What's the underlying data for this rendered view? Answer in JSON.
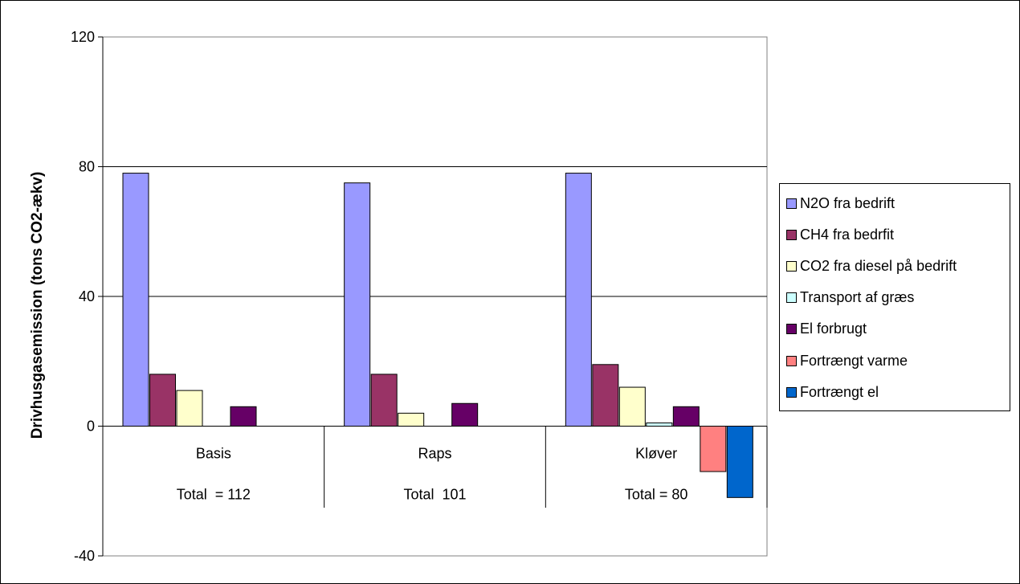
{
  "chart_data": {
    "type": "bar",
    "ylabel": "Drivhusgasemission (tons CO2-ækv)",
    "ylim": [
      -40,
      120
    ],
    "yticks": [
      -40,
      0,
      40,
      80,
      120
    ],
    "grid": true,
    "legend_position": "right",
    "categories": [
      "Basis",
      "Raps",
      "Kløver"
    ],
    "category_totals": [
      "Total  = 112",
      "Total  101",
      "Total = 80"
    ],
    "series": [
      {
        "name": "N2O fra bedrift",
        "color": "#9999ff",
        "values": [
          78,
          75,
          78
        ]
      },
      {
        "name": "CH4 fra bedrfit",
        "color": "#993366",
        "values": [
          16,
          16,
          19
        ]
      },
      {
        "name": "CO2 fra diesel på bedrift",
        "color": "#ffffcc",
        "values": [
          11,
          4,
          12
        ]
      },
      {
        "name": "Transport af græs",
        "color": "#ccffff",
        "values": [
          0,
          0,
          1
        ]
      },
      {
        "name": "El forbrugt",
        "color": "#660066",
        "values": [
          6,
          7,
          6
        ]
      },
      {
        "name": "Fortrængt varme",
        "color": "#ff8080",
        "values": [
          0,
          0,
          -14
        ]
      },
      {
        "name": "Fortrængt el",
        "color": "#0066cc",
        "values": [
          0,
          0,
          -22
        ]
      }
    ]
  }
}
